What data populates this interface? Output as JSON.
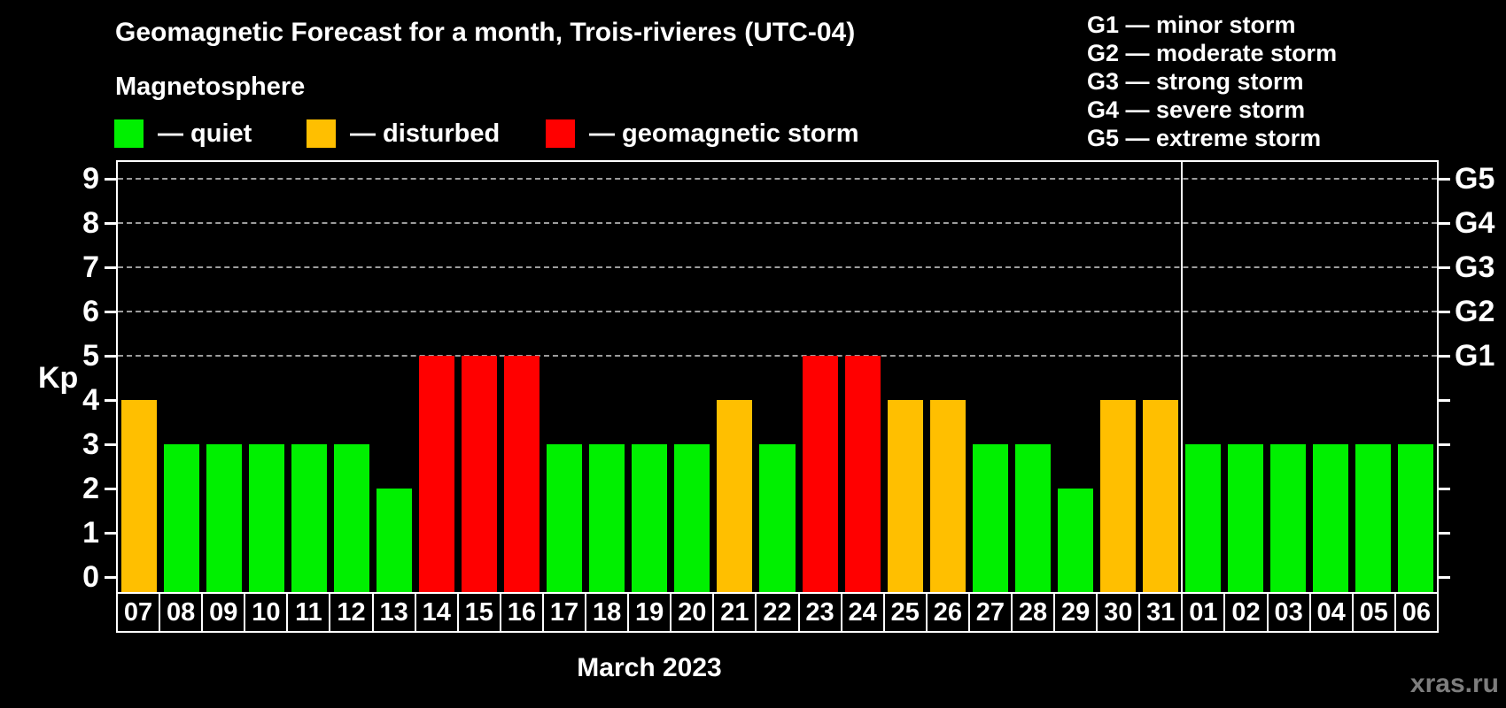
{
  "header": {
    "title": "Geomagnetic Forecast for a month, Trois-rivieres (UTC-04)",
    "subtitle": "Magnetosphere"
  },
  "legend": {
    "items": [
      {
        "label": "— quiet",
        "key": "quiet",
        "color": "#00f000"
      },
      {
        "label": "— disturbed",
        "key": "disturbed",
        "color": "#ffbf00"
      },
      {
        "label": "— geomagnetic storm",
        "key": "storm",
        "color": "#ff0000"
      }
    ]
  },
  "g_legend": {
    "items": [
      "G1 — minor storm",
      "G2 — moderate storm",
      "G3 — strong storm",
      "G4 — severe storm",
      "G5 — extreme storm"
    ]
  },
  "watermark": "xras.ru",
  "chart_data": {
    "type": "bar",
    "title": "Geomagnetic Forecast for a month, Trois-rivieres (UTC-04)",
    "xlabel": "March 2023",
    "ylabel": "Kp",
    "ylim": [
      0,
      9
    ],
    "yticks": [
      0,
      1,
      2,
      3,
      4,
      5,
      6,
      7,
      8,
      9
    ],
    "gridlines_at_kp": [
      5,
      6,
      7,
      8,
      9
    ],
    "grid": "horizontal dashed lines at storm levels only",
    "legend_position": "top-left",
    "right_axis": [
      {
        "kp": 5,
        "label": "G1"
      },
      {
        "kp": 6,
        "label": "G2"
      },
      {
        "kp": 7,
        "label": "G3"
      },
      {
        "kp": 8,
        "label": "G4"
      },
      {
        "kp": 9,
        "label": "G5"
      }
    ],
    "month_separator_after_index": 24,
    "categories": [
      "07",
      "08",
      "09",
      "10",
      "11",
      "12",
      "13",
      "14",
      "15",
      "16",
      "17",
      "18",
      "19",
      "20",
      "21",
      "22",
      "23",
      "24",
      "25",
      "26",
      "27",
      "28",
      "29",
      "30",
      "31",
      "01",
      "02",
      "03",
      "04",
      "05",
      "06"
    ],
    "series": [
      {
        "name": "Kp forecast",
        "values": [
          4,
          3,
          3,
          3,
          3,
          3,
          2,
          5,
          5,
          5,
          3,
          3,
          3,
          3,
          4,
          3,
          5,
          5,
          4,
          4,
          3,
          3,
          2,
          4,
          4,
          3,
          3,
          3,
          3,
          3,
          3
        ],
        "statuses": [
          "disturbed",
          "quiet",
          "quiet",
          "quiet",
          "quiet",
          "quiet",
          "quiet",
          "storm",
          "storm",
          "storm",
          "quiet",
          "quiet",
          "quiet",
          "quiet",
          "disturbed",
          "quiet",
          "storm",
          "storm",
          "disturbed",
          "disturbed",
          "quiet",
          "quiet",
          "quiet",
          "disturbed",
          "disturbed",
          "quiet",
          "quiet",
          "quiet",
          "quiet",
          "quiet",
          "quiet"
        ]
      }
    ],
    "status_colors": {
      "quiet": "#00f000",
      "disturbed": "#ffbf00",
      "storm": "#ff0000"
    }
  }
}
